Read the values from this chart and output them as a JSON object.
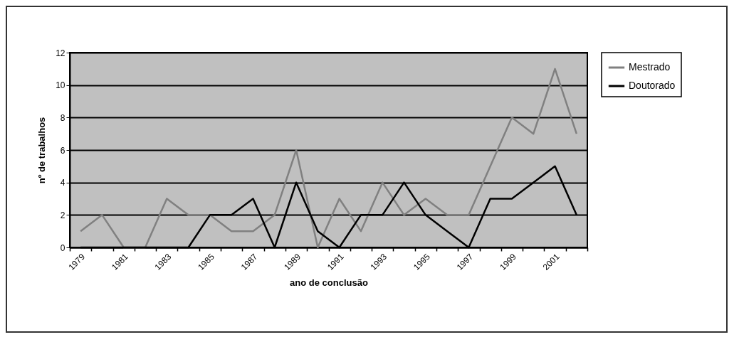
{
  "chart_data": {
    "type": "line",
    "xlabel": "ano de conclusão",
    "ylabel": "nº de trabalhos",
    "categories": [
      "1979",
      null,
      "1981",
      null,
      "1983",
      null,
      "1985",
      null,
      "1987",
      null,
      "1989",
      null,
      "1991",
      null,
      "1993",
      null,
      "1995",
      null,
      "1997",
      null,
      "1999",
      null,
      "2001",
      null
    ],
    "series": [
      {
        "name": "Mestrado",
        "color": "#808080",
        "values": [
          1,
          2,
          0,
          0,
          3,
          2,
          2,
          1,
          1,
          2,
          6,
          0,
          3,
          1,
          4,
          2,
          3,
          2,
          2,
          5,
          8,
          7,
          11,
          7
        ]
      },
      {
        "name": "Doutorado",
        "color": "#000000",
        "values": [
          0,
          0,
          0,
          0,
          0,
          0,
          2,
          2,
          3,
          0,
          4,
          1,
          0,
          2,
          2,
          4,
          2,
          1,
          0,
          3,
          3,
          4,
          5,
          2
        ]
      }
    ],
    "ylim": [
      0,
      12
    ],
    "yticks": [
      0,
      2,
      4,
      6,
      8,
      10,
      12
    ],
    "grid": "y",
    "legend": "right",
    "marker": "none",
    "line_style": "solid"
  }
}
